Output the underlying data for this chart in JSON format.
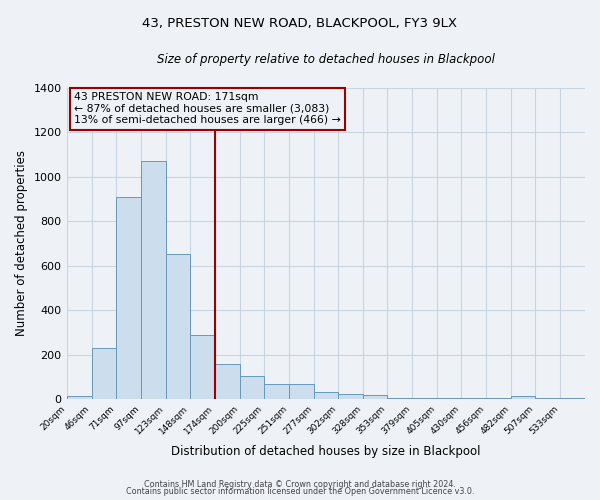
{
  "title": "43, PRESTON NEW ROAD, BLACKPOOL, FY3 9LX",
  "subtitle": "Size of property relative to detached houses in Blackpool",
  "xlabel": "Distribution of detached houses by size in Blackpool",
  "ylabel": "Number of detached properties",
  "bin_labels": [
    "20sqm",
    "46sqm",
    "71sqm",
    "97sqm",
    "123sqm",
    "148sqm",
    "174sqm",
    "200sqm",
    "225sqm",
    "251sqm",
    "277sqm",
    "302sqm",
    "328sqm",
    "353sqm",
    "379sqm",
    "405sqm",
    "430sqm",
    "456sqm",
    "482sqm",
    "507sqm",
    "533sqm"
  ],
  "bar_heights": [
    15,
    228,
    910,
    1070,
    650,
    290,
    160,
    105,
    68,
    68,
    32,
    22,
    17,
    5,
    5,
    5,
    5,
    5,
    13,
    5,
    5
  ],
  "bin_edges": [
    20,
    46,
    71,
    97,
    123,
    148,
    174,
    200,
    225,
    251,
    277,
    302,
    328,
    353,
    379,
    405,
    430,
    456,
    482,
    507,
    533,
    559
  ],
  "bar_color": "#ccdded",
  "bar_edge_color": "#6699bb",
  "vline_x": 174,
  "vline_color": "#990000",
  "annotation_line1": "43 PRESTON NEW ROAD: 171sqm",
  "annotation_line2": "← 87% of detached houses are smaller (3,083)",
  "annotation_line3": "13% of semi-detached houses are larger (466) →",
  "annotation_box_color": "#990000",
  "ylim": [
    0,
    1400
  ],
  "yticks": [
    0,
    200,
    400,
    600,
    800,
    1000,
    1200,
    1400
  ],
  "grid_color": "#c8d4e0",
  "bg_color": "#eef2f7",
  "footer_line1": "Contains HM Land Registry data © Crown copyright and database right 2024.",
  "footer_line2": "Contains public sector information licensed under the Open Government Licence v3.0."
}
